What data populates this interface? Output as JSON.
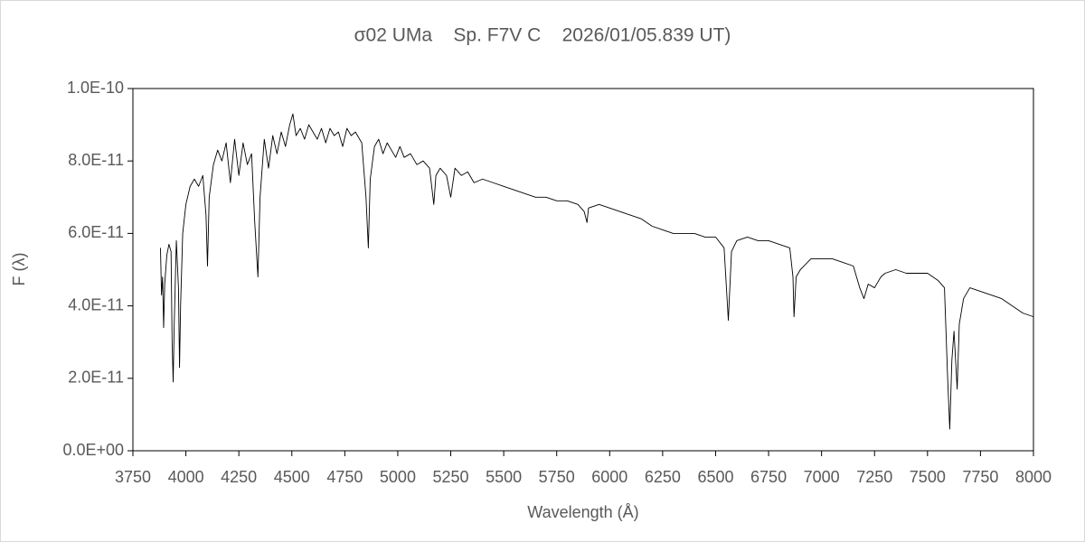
{
  "chart_data": {
    "type": "line",
    "title": "σ02 UMa    Sp. F7V C    2026/01/05.839 UT)",
    "x_label": "Wavelength (Å)",
    "y_label": "F (λ)",
    "color": "#000000",
    "grid": false,
    "xlim": [
      3750,
      8000
    ],
    "xticks": [
      3750,
      4000,
      4250,
      4500,
      4750,
      5000,
      5250,
      5500,
      5750,
      6000,
      6250,
      6500,
      6750,
      7000,
      7250,
      7500,
      7750,
      8000
    ],
    "ylim": [
      0,
      1e-10
    ],
    "yticks": [
      {
        "value": 0,
        "label": "0.0E+00"
      },
      {
        "value": 2e-11,
        "label": "2.0E-11"
      },
      {
        "value": 4e-11,
        "label": "4.0E-11"
      },
      {
        "value": 6e-11,
        "label": "6.0E-11"
      },
      {
        "value": 8e-11,
        "label": "8.0E-11"
      },
      {
        "value": 1e-10,
        "label": "1.0E-10"
      }
    ],
    "x": [
      3880,
      3885,
      3890,
      3895,
      3900,
      3910,
      3920,
      3930,
      3935,
      3940,
      3945,
      3955,
      3965,
      3970,
      3975,
      3985,
      4000,
      4020,
      4040,
      4060,
      4080,
      4095,
      4102,
      4110,
      4130,
      4150,
      4170,
      4190,
      4210,
      4230,
      4250,
      4270,
      4290,
      4310,
      4325,
      4340,
      4350,
      4370,
      4390,
      4410,
      4430,
      4450,
      4470,
      4490,
      4505,
      4520,
      4540,
      4560,
      4580,
      4600,
      4620,
      4640,
      4660,
      4680,
      4700,
      4720,
      4740,
      4760,
      4780,
      4800,
      4830,
      4850,
      4861,
      4870,
      4890,
      4910,
      4930,
      4950,
      4970,
      4990,
      5010,
      5030,
      5060,
      5090,
      5120,
      5150,
      5170,
      5180,
      5200,
      5230,
      5250,
      5270,
      5300,
      5330,
      5360,
      5400,
      5450,
      5500,
      5550,
      5600,
      5650,
      5700,
      5750,
      5800,
      5850,
      5880,
      5893,
      5900,
      5950,
      6000,
      6050,
      6100,
      6150,
      6200,
      6250,
      6300,
      6350,
      6400,
      6450,
      6500,
      6540,
      6560,
      6575,
      6600,
      6650,
      6700,
      6750,
      6800,
      6850,
      6865,
      6870,
      6880,
      6900,
      6950,
      7000,
      7050,
      7100,
      7150,
      7180,
      7200,
      7220,
      7250,
      7280,
      7300,
      7350,
      7400,
      7450,
      7500,
      7550,
      7580,
      7595,
      7605,
      7615,
      7625,
      7640,
      7650,
      7670,
      7700,
      7750,
      7800,
      7850,
      7900,
      7950,
      8000
    ],
    "values": [
      5.6e-11,
      4.3e-11,
      4.8e-11,
      3.4e-11,
      4.6e-11,
      5.4e-11,
      5.7e-11,
      5.5e-11,
      3e-11,
      1.9e-11,
      3.5e-11,
      5.8e-11,
      4.5e-11,
      2.3e-11,
      4e-11,
      6e-11,
      6.8e-11,
      7.3e-11,
      7.5e-11,
      7.3e-11,
      7.6e-11,
      6.5e-11,
      5.1e-11,
      7e-11,
      7.9e-11,
      8.3e-11,
      8e-11,
      8.5e-11,
      7.4e-11,
      8.6e-11,
      7.6e-11,
      8.5e-11,
      7.9e-11,
      8.2e-11,
      6.3e-11,
      4.8e-11,
      7e-11,
      8.6e-11,
      7.8e-11,
      8.7e-11,
      8.2e-11,
      8.8e-11,
      8.4e-11,
      9e-11,
      9.3e-11,
      8.7e-11,
      8.9e-11,
      8.6e-11,
      9e-11,
      8.8e-11,
      8.6e-11,
      8.9e-11,
      8.5e-11,
      8.9e-11,
      8.7e-11,
      8.8e-11,
      8.4e-11,
      8.9e-11,
      8.7e-11,
      8.8e-11,
      8.5e-11,
      7e-11,
      5.6e-11,
      7.5e-11,
      8.4e-11,
      8.6e-11,
      8.2e-11,
      8.5e-11,
      8.3e-11,
      8.1e-11,
      8.4e-11,
      8.1e-11,
      8.2e-11,
      7.9e-11,
      8e-11,
      7.8e-11,
      6.8e-11,
      7.6e-11,
      7.8e-11,
      7.6e-11,
      7e-11,
      7.8e-11,
      7.6e-11,
      7.7e-11,
      7.4e-11,
      7.5e-11,
      7.4e-11,
      7.3e-11,
      7.2e-11,
      7.1e-11,
      7e-11,
      7e-11,
      6.9e-11,
      6.9e-11,
      6.8e-11,
      6.6e-11,
      6.3e-11,
      6.7e-11,
      6.8e-11,
      6.7e-11,
      6.6e-11,
      6.5e-11,
      6.4e-11,
      6.2e-11,
      6.1e-11,
      6e-11,
      6e-11,
      6e-11,
      5.9e-11,
      5.9e-11,
      5.6e-11,
      3.6e-11,
      5.5e-11,
      5.8e-11,
      5.9e-11,
      5.8e-11,
      5.8e-11,
      5.7e-11,
      5.6e-11,
      4.8e-11,
      3.7e-11,
      4.8e-11,
      5e-11,
      5.3e-11,
      5.3e-11,
      5.3e-11,
      5.2e-11,
      5.1e-11,
      4.5e-11,
      4.2e-11,
      4.6e-11,
      4.5e-11,
      4.8e-11,
      4.9e-11,
      5e-11,
      4.9e-11,
      4.9e-11,
      4.9e-11,
      4.7e-11,
      4.5e-11,
      2e-11,
      6e-12,
      2.5e-11,
      3.3e-11,
      1.7e-11,
      3.5e-11,
      4.2e-11,
      4.5e-11,
      4.4e-11,
      4.3e-11,
      4.2e-11,
      4e-11,
      3.8e-11,
      3.7e-11
    ]
  }
}
